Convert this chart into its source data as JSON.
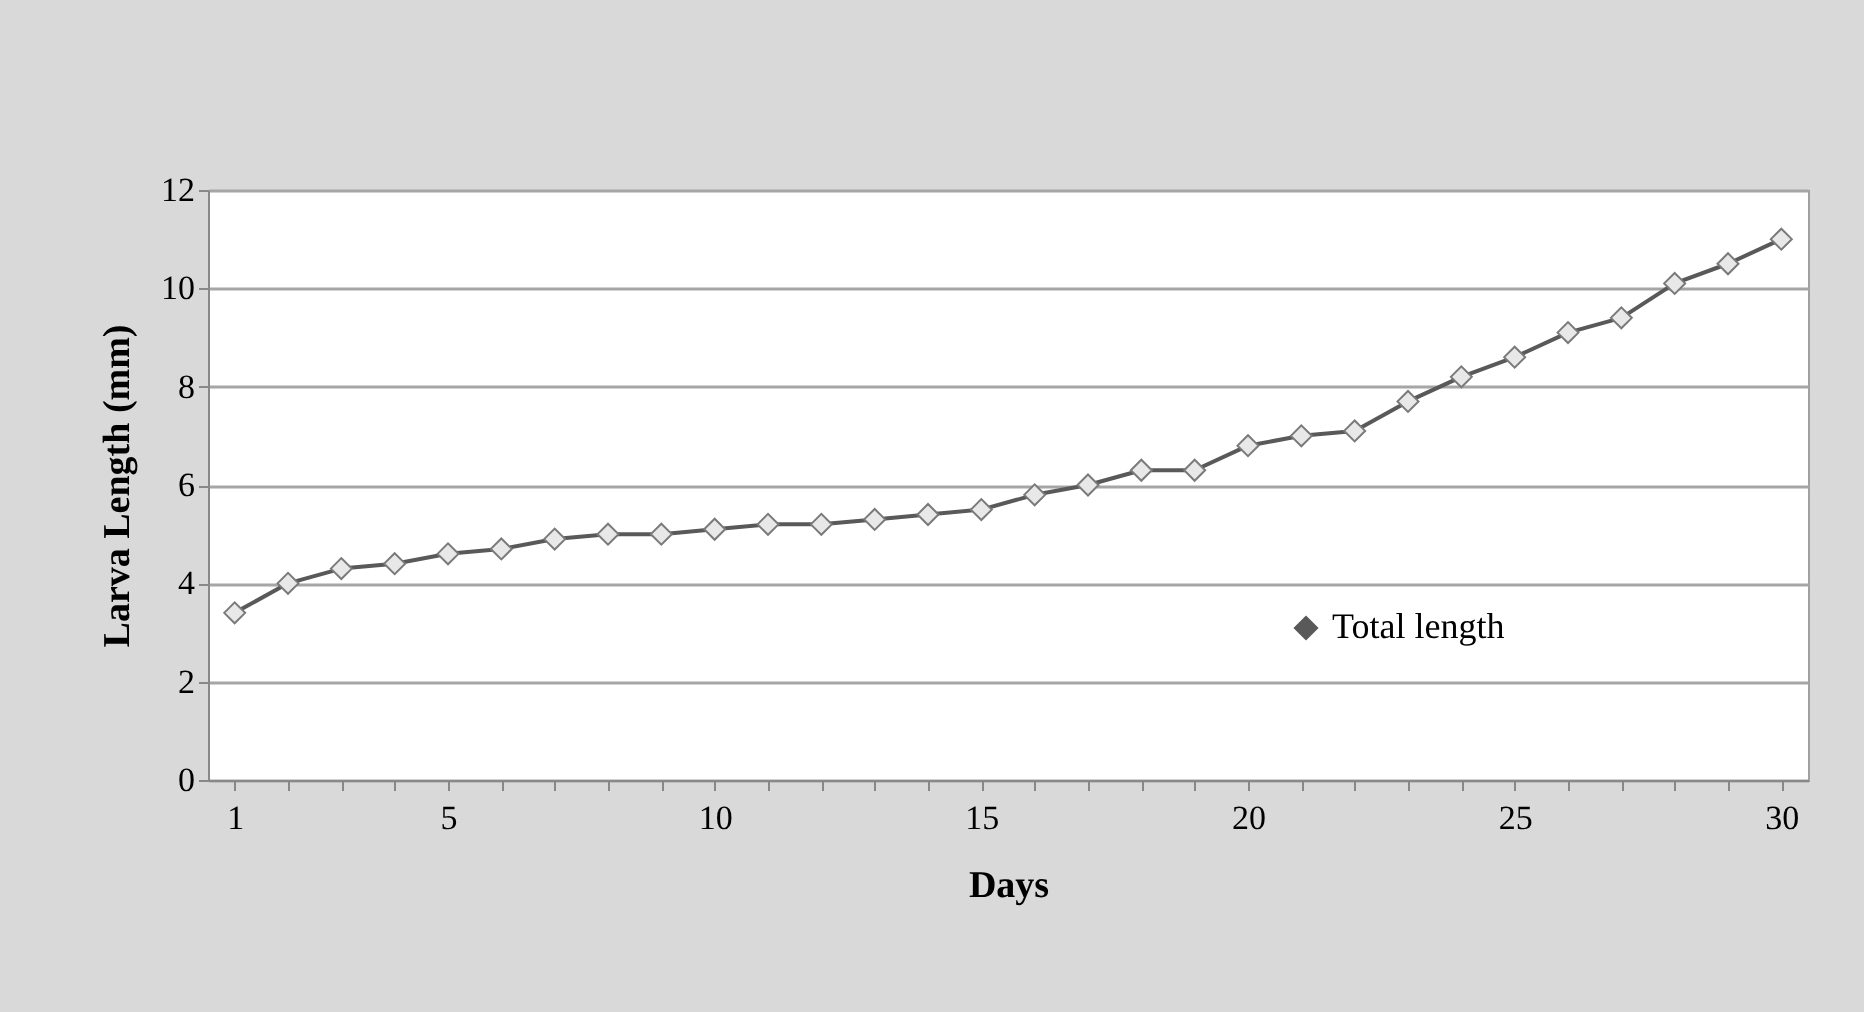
{
  "chart_data": {
    "type": "line",
    "xlabel": "Days",
    "ylabel": "Larva Length (mm)",
    "x": [
      1,
      2,
      3,
      4,
      5,
      6,
      7,
      8,
      9,
      10,
      11,
      12,
      13,
      14,
      15,
      16,
      17,
      18,
      19,
      20,
      21,
      22,
      23,
      24,
      25,
      26,
      27,
      28,
      29,
      30
    ],
    "series": [
      {
        "name": "Total length",
        "color": "#595959",
        "values": [
          3.4,
          4.0,
          4.3,
          4.4,
          4.6,
          4.7,
          4.9,
          5.0,
          5.0,
          5.1,
          5.2,
          5.2,
          5.3,
          5.4,
          5.5,
          5.8,
          6.0,
          6.3,
          6.3,
          6.8,
          7.0,
          7.1,
          7.7,
          8.2,
          8.6,
          9.1,
          9.4,
          10.1,
          10.5,
          11.0
        ]
      }
    ],
    "xlim": [
      0.5,
      30.5
    ],
    "xticks": [
      1,
      {
        "value": 2,
        "label": null
      },
      {
        "value": 3,
        "label": null
      },
      {
        "value": 4,
        "label": null
      },
      5,
      {
        "value": 6,
        "label": null
      },
      {
        "value": 7,
        "label": null
      },
      {
        "value": 8,
        "label": null
      },
      {
        "value": 9,
        "label": null
      },
      10,
      {
        "value": 11,
        "label": null
      },
      {
        "value": 12,
        "label": null
      },
      {
        "value": 13,
        "label": null
      },
      {
        "value": 14,
        "label": null
      },
      15,
      {
        "value": 16,
        "label": null
      },
      {
        "value": 17,
        "label": null
      },
      {
        "value": 18,
        "label": null
      },
      {
        "value": 19,
        "label": null
      },
      20,
      {
        "value": 21,
        "label": null
      },
      {
        "value": 22,
        "label": null
      },
      {
        "value": 23,
        "label": null
      },
      {
        "value": 24,
        "label": null
      },
      25,
      {
        "value": 26,
        "label": null
      },
      {
        "value": 27,
        "label": null
      },
      {
        "value": 28,
        "label": null
      },
      {
        "value": 29,
        "label": null
      },
      30
    ],
    "ylim": [
      0,
      12
    ],
    "yticks": [
      0,
      2,
      4,
      6,
      8,
      10,
      12
    ],
    "grid": "y",
    "legend": "right",
    "marker": "diamond",
    "line_style": "solid"
  }
}
